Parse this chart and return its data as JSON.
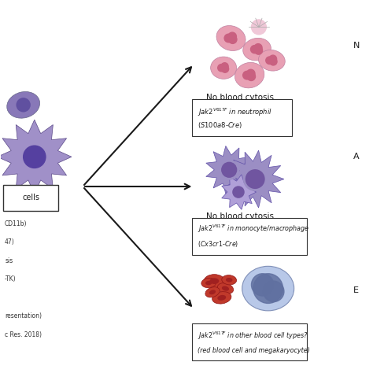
{
  "bg_color": "#ffffff",
  "arrow_color": "#1a1a1a",
  "box_border_color": "#333333",
  "text_color": "#1a1a1a",
  "fig_width": 4.74,
  "fig_height": 4.74,
  "dpi": 100,
  "left_box_label": "cells",
  "left_text_lines": [
    "CD11b)",
    "47)",
    "sis",
    "-TK)",
    "",
    "resentation)",
    "c Res. 2018)"
  ],
  "right_labels_top": "N",
  "right_labels_mid": "A",
  "right_labels_bot": "E",
  "label1_text": "No blood cytosis",
  "label2_text": "No blood cytosis",
  "neutrophil_color_pink": "#e8a0b4",
  "neutrophil_color_deep": "#c96080",
  "monocyte_color": "#9b8ec4",
  "monocyte_color_dark": "#7055a0",
  "rbc_color": "#c0392b",
  "mega_color_light": "#b8c8e8",
  "mega_color_dark": "#6070a0",
  "cell_left_purple1": "#8878b8",
  "cell_left_purple2": "#a090c8"
}
